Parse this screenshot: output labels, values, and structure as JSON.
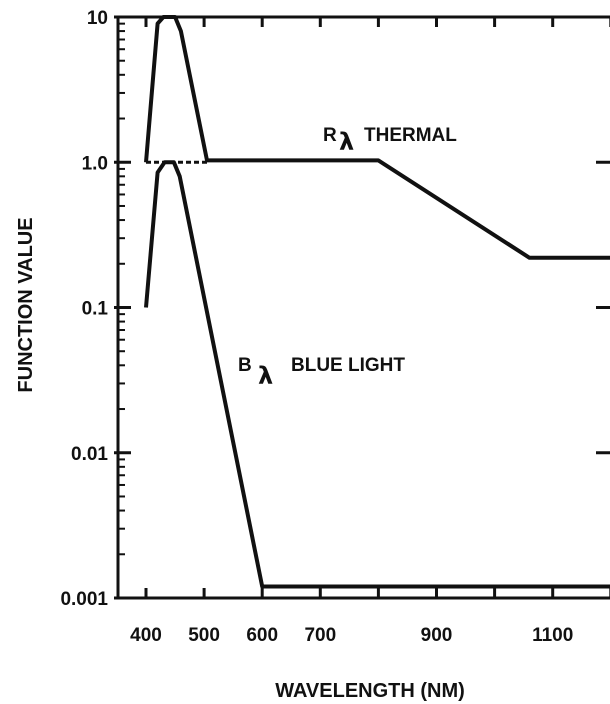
{
  "chart_data": {
    "type": "line",
    "title": "",
    "xlabel": "WAVELENGTH (NM)",
    "ylabel": "FUNCTION VALUE",
    "y_scale": "log",
    "x_scale": "linear",
    "xlim": [
      345,
      1240
    ],
    "ylim": [
      0.001,
      10
    ],
    "x_ticks": [
      400,
      500,
      600,
      700,
      900,
      1100
    ],
    "x_tick_labels": [
      "400",
      "500",
      "600",
      "700",
      "900",
      "1100"
    ],
    "y_ticks": [
      0.001,
      0.01,
      0.1,
      1,
      10
    ],
    "y_tick_labels": [
      "0.001",
      "0.01",
      "0.1",
      "1.0",
      "10"
    ],
    "grid": false,
    "series": [
      {
        "label_main": "R",
        "label_sub": "λ",
        "label_rest": "THERMAL",
        "points": [
          [
            400,
            1.0
          ],
          [
            420,
            9.0
          ],
          [
            430,
            10.0
          ],
          [
            450,
            10.0
          ],
          [
            460,
            8.0
          ],
          [
            505,
            1.03
          ],
          [
            800,
            1.03
          ],
          [
            1060,
            0.22
          ],
          [
            1240,
            0.22
          ]
        ]
      },
      {
        "label_main": "B",
        "label_sub": "λ",
        "label_rest": "BLUE LIGHT",
        "points": [
          [
            400,
            0.1
          ],
          [
            420,
            0.85
          ],
          [
            432,
            1.0
          ],
          [
            448,
            1.0
          ],
          [
            458,
            0.8
          ],
          [
            600,
            0.0012
          ],
          [
            1240,
            0.0012
          ]
        ]
      }
    ],
    "baseline_segment": {
      "x": [
        400,
        505
      ],
      "y": 1.0,
      "style": "dashed"
    }
  }
}
